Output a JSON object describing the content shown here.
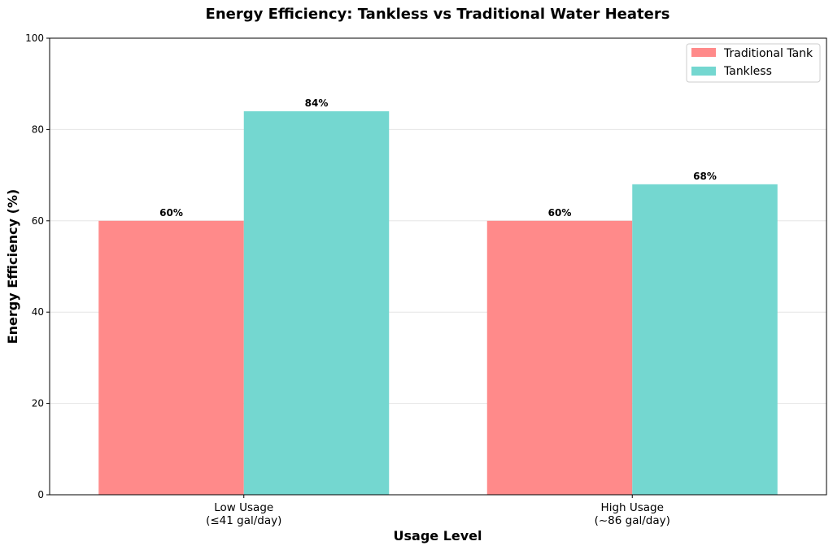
{
  "chart_data": {
    "type": "bar",
    "title": "Energy Efficiency: Tankless vs Traditional Water Heaters",
    "xlabel": "Usage Level",
    "ylabel": "Energy Efficiency (%)",
    "ylim": [
      0,
      100
    ],
    "yticks": [
      0,
      20,
      40,
      60,
      80,
      100
    ],
    "grid": "horizontal",
    "legend_position": "top-right",
    "categories": [
      {
        "line1": "Low Usage",
        "line2": "(≤41 gal/day)"
      },
      {
        "line1": "High Usage",
        "line2": "(~86 gal/day)"
      }
    ],
    "series": [
      {
        "name": "Traditional Tank",
        "color": "#ff8a8a",
        "values": [
          60,
          60
        ],
        "labels": [
          "60%",
          "60%"
        ]
      },
      {
        "name": "Tankless",
        "color": "#74d7d0",
        "values": [
          84,
          68
        ],
        "labels": [
          "84%",
          "68%"
        ]
      }
    ]
  }
}
